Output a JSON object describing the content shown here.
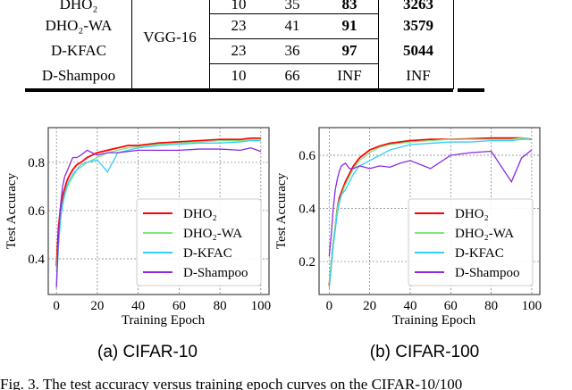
{
  "table": {
    "backbone": "VGG-16",
    "rows": [
      {
        "method": "DHO₂",
        "c1": "10",
        "c2": "35",
        "c3": "83",
        "c4": "3263"
      },
      {
        "method": "DHO₂-WA",
        "c1": "23",
        "c2": "41",
        "c3": "91",
        "c4": "3579"
      },
      {
        "method": "D-KFAC",
        "c1": "23",
        "c2": "36",
        "c3": "97",
        "c4": "5044"
      },
      {
        "method": "D-Shampoo",
        "c1": "10",
        "c2": "66",
        "c3": "INF",
        "c4": "INF"
      }
    ]
  },
  "captions": {
    "a": "(a) CIFAR-10",
    "b": "(b) CIFAR-100"
  },
  "figure_caption": "Fig. 3.  The test accuracy versus training epoch curves on the CIFAR-10/100",
  "chart_data": [
    {
      "type": "line",
      "title": "(a) CIFAR-10",
      "xlabel": "Training Epoch",
      "ylabel": "Test Accuracy",
      "xlim": [
        -4,
        104
      ],
      "ylim": [
        0.252,
        0.944
      ],
      "xticks": [
        "0",
        "20",
        "40",
        "60",
        "80",
        "100"
      ],
      "yticks": [
        "0.4",
        "0.6",
        "0.8"
      ],
      "grid": true,
      "legend": "lower-right",
      "x": [
        0,
        1,
        2,
        3,
        4,
        5,
        6,
        8,
        10,
        12,
        15,
        20,
        25,
        30,
        35,
        40,
        50,
        60,
        70,
        80,
        90,
        95,
        100
      ],
      "series": [
        {
          "name": "DHO₂",
          "color": "#ff0000",
          "values": [
            0.37,
            0.53,
            0.61,
            0.66,
            0.69,
            0.72,
            0.74,
            0.77,
            0.79,
            0.8,
            0.82,
            0.84,
            0.85,
            0.86,
            0.87,
            0.87,
            0.88,
            0.885,
            0.89,
            0.895,
            0.895,
            0.9,
            0.9
          ]
        },
        {
          "name": "DHO₂-WA",
          "color": "#7ee87e",
          "values": [
            0.35,
            0.48,
            0.57,
            0.62,
            0.66,
            0.69,
            0.71,
            0.74,
            0.77,
            0.78,
            0.8,
            0.82,
            0.84,
            0.85,
            0.86,
            0.865,
            0.875,
            0.88,
            0.885,
            0.89,
            0.89,
            0.895,
            0.895
          ]
        },
        {
          "name": "D-KFAC",
          "color": "#33ccff",
          "values": [
            0.29,
            0.45,
            0.56,
            0.63,
            0.67,
            0.7,
            0.72,
            0.75,
            0.77,
            0.79,
            0.8,
            0.81,
            0.76,
            0.84,
            0.85,
            0.86,
            0.87,
            0.875,
            0.88,
            0.88,
            0.885,
            0.89,
            0.89
          ]
        },
        {
          "name": "D-Shampoo",
          "color": "#8a2be2",
          "values": [
            0.28,
            0.5,
            0.62,
            0.7,
            0.74,
            0.76,
            0.78,
            0.82,
            0.82,
            0.83,
            0.85,
            0.83,
            0.84,
            0.84,
            0.845,
            0.85,
            0.85,
            0.85,
            0.855,
            0.855,
            0.85,
            0.86,
            0.845
          ]
        }
      ]
    },
    {
      "type": "line",
      "title": "(b) CIFAR-100",
      "xlabel": "Training Epoch",
      "ylabel": "Test Accuracy",
      "xlim": [
        -5,
        104
      ],
      "ylim": [
        0.076,
        0.704
      ],
      "xticks": [
        "0",
        "20",
        "40",
        "60",
        "80",
        "100"
      ],
      "yticks": [
        "0.2",
        "0.4",
        "0.6"
      ],
      "grid": true,
      "legend": "lower-right",
      "x": [
        0,
        1,
        2,
        3,
        4,
        5,
        6,
        8,
        10,
        12,
        15,
        20,
        25,
        30,
        35,
        40,
        50,
        60,
        70,
        80,
        90,
        95,
        100
      ],
      "series": [
        {
          "name": "DHO₂",
          "color": "#ff0000",
          "values": [
            0.11,
            0.19,
            0.27,
            0.33,
            0.4,
            0.44,
            0.46,
            0.5,
            0.53,
            0.56,
            0.59,
            0.62,
            0.635,
            0.645,
            0.65,
            0.655,
            0.66,
            0.66,
            0.662,
            0.665,
            0.665,
            0.665,
            0.66
          ]
        },
        {
          "name": "DHO₂-WA",
          "color": "#7ee87e",
          "values": [
            0.12,
            0.2,
            0.28,
            0.34,
            0.4,
            0.43,
            0.45,
            0.49,
            0.52,
            0.55,
            0.58,
            0.61,
            0.63,
            0.64,
            0.645,
            0.65,
            0.655,
            0.66,
            0.66,
            0.66,
            0.66,
            0.665,
            0.66
          ]
        },
        {
          "name": "D-KFAC",
          "color": "#33ccff",
          "values": [
            0.1,
            0.18,
            0.26,
            0.32,
            0.38,
            0.42,
            0.45,
            0.47,
            0.5,
            0.53,
            0.56,
            0.58,
            0.6,
            0.62,
            0.63,
            0.64,
            0.645,
            0.65,
            0.65,
            0.655,
            0.655,
            0.66,
            0.66
          ]
        },
        {
          "name": "D-Shampoo",
          "color": "#8a2be2",
          "values": [
            0.22,
            0.3,
            0.4,
            0.47,
            0.51,
            0.54,
            0.56,
            0.57,
            0.55,
            0.55,
            0.56,
            0.55,
            0.56,
            0.555,
            0.57,
            0.58,
            0.55,
            0.6,
            0.61,
            0.615,
            0.5,
            0.59,
            0.62
          ]
        }
      ]
    }
  ]
}
